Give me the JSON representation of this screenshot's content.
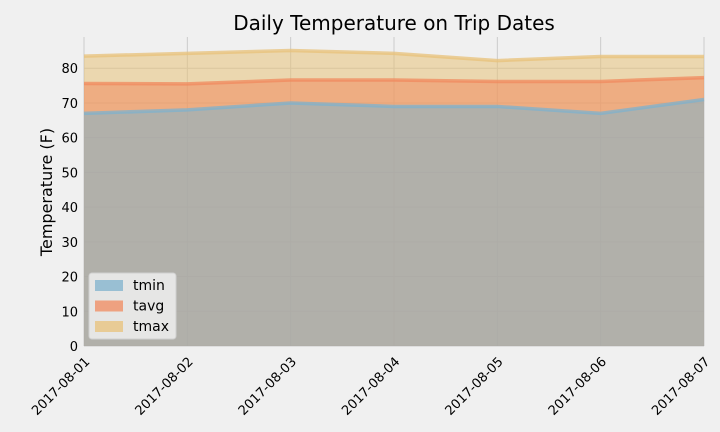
{
  "chart_data": {
    "type": "area",
    "title": "Daily Temperature on Trip Dates",
    "xlabel": "",
    "ylabel": "Temperature (F)",
    "categories": [
      "2017-08-01",
      "2017-08-02",
      "2017-08-03",
      "2017-08-04",
      "2017-08-05",
      "2017-08-06",
      "2017-08-07"
    ],
    "series": [
      {
        "name": "tmin",
        "values": [
          67.0,
          68.0,
          70.0,
          69.0,
          69.0,
          67.0,
          71.0
        ],
        "color": "#7fb2cc"
      },
      {
        "name": "tavg",
        "values": [
          75.6,
          75.5,
          76.6,
          76.6,
          76.2,
          76.2,
          77.3
        ],
        "color": "#f08a5d"
      },
      {
        "name": "tmax",
        "values": [
          83.5,
          84.3,
          85.1,
          84.3,
          82.2,
          83.4,
          83.4
        ],
        "color": "#e8c27a"
      }
    ],
    "stacked": false,
    "ylim": [
      0,
      89
    ],
    "yticks": [
      0,
      10,
      20,
      30,
      40,
      50,
      60,
      70,
      80
    ],
    "grid": true,
    "legend_position": "lower-left",
    "background_color": "#f0f0f0",
    "grid_color": "#cbcbcb"
  }
}
